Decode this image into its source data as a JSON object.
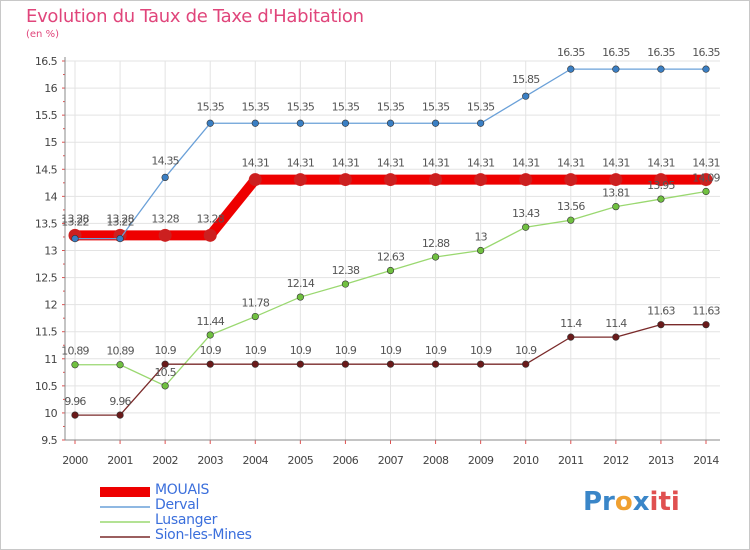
{
  "title": "Evolution du Taux de Taxe d'Habitation",
  "subtitle": "(en %)",
  "logo": {
    "text": "Proxiti",
    "parts": [
      "Pr",
      "o",
      "x",
      "iti"
    ]
  },
  "chart_data": {
    "type": "line",
    "title": "Evolution du Taux de Taxe d'Habitation",
    "ylabel": "(en %)",
    "xlabel": "",
    "x": [
      "2000",
      "2001",
      "2002",
      "2003",
      "2004",
      "2005",
      "2006",
      "2007",
      "2008",
      "2009",
      "2010",
      "2011",
      "2012",
      "2013",
      "2014"
    ],
    "ylim": [
      9.5,
      16.5
    ],
    "yticks": [
      "9.5",
      "10",
      "10.5",
      "11",
      "11.5",
      "12",
      "12.5",
      "13",
      "13.5",
      "14",
      "14.5",
      "15",
      "15.5",
      "16",
      "16.5"
    ],
    "grid": true,
    "legend_position": "bottom-left",
    "series": [
      {
        "name": "MOUAIS",
        "color": "#ee0000",
        "marker_color": "#cc2020",
        "width": 10,
        "values": [
          13.28,
          13.28,
          13.28,
          13.28,
          14.31,
          14.31,
          14.31,
          14.31,
          14.31,
          14.31,
          14.31,
          14.31,
          14.31,
          14.31,
          14.31
        ],
        "labels": [
          "13.28",
          "13.28",
          "13.28",
          "13.28",
          "14.31",
          "14.31",
          "14.31",
          "14.31",
          "14.31",
          "14.31",
          "14.31",
          "14.31",
          "14.31",
          "14.31",
          "14.31"
        ]
      },
      {
        "name": "Derval",
        "color": "#6aa0d8",
        "marker_color": "#3a7fc4",
        "width": 1.3,
        "values": [
          13.22,
          13.22,
          14.35,
          15.35,
          15.35,
          15.35,
          15.35,
          15.35,
          15.35,
          15.35,
          15.85,
          16.35,
          16.35,
          16.35,
          16.35
        ],
        "labels": [
          "13.22",
          "13.22",
          "14.35",
          "15.35",
          "15.35",
          "15.35",
          "15.35",
          "15.35",
          "15.35",
          "15.35",
          "15.85",
          "16.35",
          "16.35",
          "16.35",
          "16.35"
        ]
      },
      {
        "name": "Lusanger",
        "color": "#9ad870",
        "marker_color": "#70c040",
        "width": 1.3,
        "values": [
          10.89,
          10.89,
          10.5,
          11.44,
          11.78,
          12.14,
          12.38,
          12.63,
          12.88,
          13,
          13.43,
          13.56,
          13.81,
          13.95,
          14.09
        ],
        "labels": [
          "10.89",
          "10.89",
          "10.5",
          "11.44",
          "11.78",
          "12.14",
          "12.38",
          "12.63",
          "12.88",
          "13",
          "13.43",
          "13.56",
          "13.81",
          "13.95",
          "14.09"
        ]
      },
      {
        "name": "Sion-les-Mines",
        "color": "#7a2a2a",
        "marker_color": "#6a1a1a",
        "width": 1.3,
        "values": [
          9.96,
          9.96,
          10.9,
          10.9,
          10.9,
          10.9,
          10.9,
          10.9,
          10.9,
          10.9,
          10.9,
          11.4,
          11.4,
          11.63,
          11.63
        ],
        "labels": [
          "9.96",
          "9.96",
          "10.9",
          "10.9",
          "10.9",
          "10.9",
          "10.9",
          "10.9",
          "10.9",
          "10.9",
          "10.9",
          "11.4",
          "11.4",
          "11.63",
          "11.63"
        ]
      }
    ]
  }
}
